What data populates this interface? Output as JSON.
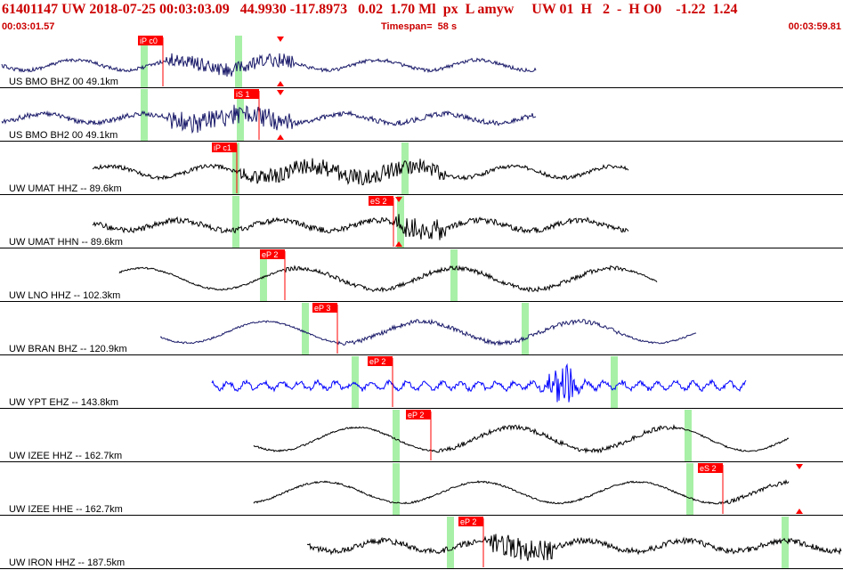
{
  "header": {
    "title_line": "61401147 UW 2018-07-25 00:03:03.09   44.9930 -117.8973   0.02  1.70 Ml  px  L amyw     UW 01  H   2  -  H O0    -1.22  1.24",
    "start_time": "00:03:01.57",
    "timespan": "Timespan=  58 s",
    "end_time": "00:03:59.81"
  },
  "colors": {
    "pick": "#ff0000",
    "window": "#a8f0a8",
    "trace_dark": "#000000",
    "trace_navy": "#1a1a6a",
    "trace_blue": "#0000ff",
    "header_text": "#cc0000"
  },
  "traces": [
    {
      "label": "US BMO BHZ 00 49.1km",
      "color": "trace_navy",
      "picks": [
        "iP c0"
      ],
      "arrows": []
    },
    {
      "label": "US BMO BH2 00 49.1km",
      "color": "trace_navy",
      "picks": [
        "iS 1"
      ],
      "arrows": [
        "down",
        "up"
      ]
    },
    {
      "label": "UW UMAT HHZ -- 89.6km",
      "color": "trace_dark",
      "picks": [
        "iP c1"
      ],
      "arrows": []
    },
    {
      "label": "UW UMAT HHN -- 89.6km",
      "color": "trace_dark",
      "picks": [
        "eS 2"
      ],
      "arrows": [
        "down",
        "up"
      ]
    },
    {
      "label": "UW LNO HHZ -- 102.3km",
      "color": "trace_dark",
      "picks": [
        "eP 2"
      ],
      "arrows": []
    },
    {
      "label": "UW BRAN BHZ -- 120.9km",
      "color": "trace_navy",
      "picks": [
        "eP 3"
      ],
      "arrows": []
    },
    {
      "label": "UW YPT EHZ -- 143.8km",
      "color": "trace_blue",
      "picks": [
        "eP 2"
      ],
      "arrows": []
    },
    {
      "label": "UW IZEE HHZ -- 162.7km",
      "color": "trace_dark",
      "picks": [
        "eP 2"
      ],
      "arrows": []
    },
    {
      "label": "UW IZEE HHE -- 162.7km",
      "color": "trace_dark",
      "picks": [
        "eS 2"
      ],
      "arrows": [
        "down",
        "up"
      ]
    },
    {
      "label": "UW IRON HHZ -- 187.5km",
      "color": "trace_dark",
      "picks": [
        "eP 2"
      ],
      "arrows": []
    }
  ]
}
